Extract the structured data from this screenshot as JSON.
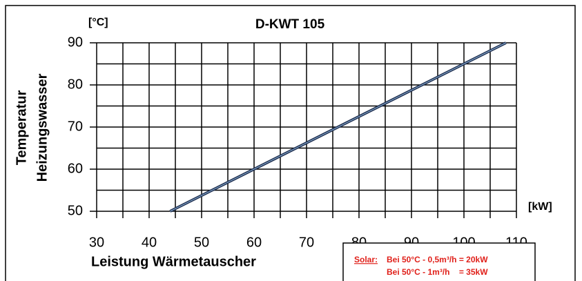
{
  "chart_data": {
    "type": "line",
    "title": "D-KWT 105",
    "y_unit": "[°C]",
    "x_unit": "[kW]",
    "ylabel": [
      "Temperatur",
      "Heizungswasser"
    ],
    "xlabel": "Leistung Wärmetauscher",
    "x": [
      44,
      108
    ],
    "series": [
      {
        "color": "#1f2f4f",
        "values": [
          50,
          90
        ]
      }
    ],
    "xlim": [
      30,
      110
    ],
    "xticks": [
      30,
      40,
      50,
      60,
      70,
      80,
      90,
      100,
      110
    ],
    "xminorticks": [
      35,
      45,
      55,
      65,
      75,
      85,
      95,
      105
    ],
    "ylim": [
      50,
      90
    ],
    "yticks": [
      50,
      60,
      70,
      80,
      90
    ],
    "yminorticks": [
      55,
      65,
      75,
      85
    ],
    "grid": true,
    "annotation": {
      "label": "Solar:",
      "lines": [
        "Bei 50°C - 0,5m³/h = 20kW",
        "Bei 50°C - 1m³/h    = 35kW"
      ]
    }
  }
}
